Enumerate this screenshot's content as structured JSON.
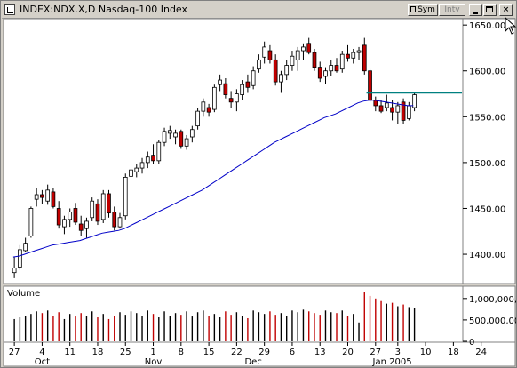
{
  "window": {
    "title": "INDEX:NDX.X,D Nasdaq-100 Index",
    "sym_label": "Sym",
    "intv_label": "Intv",
    "min_label": "",
    "max_label": "",
    "close_label": "×"
  },
  "chart_data": [
    {
      "type": "candlestick",
      "title": "",
      "ylim": [
        1370,
        1655
      ],
      "yticks": [
        1400,
        1450,
        1500,
        1550,
        1600,
        "1650.00"
      ],
      "ytick_labels": [
        "1400.00",
        "1450.00",
        "1500.00",
        "1550.00",
        "1600.00",
        "1650.00"
      ],
      "x_day_ticks": [
        "27",
        "4",
        "11",
        "18",
        "25",
        "1",
        "8",
        "15",
        "22",
        "29",
        "6",
        "13",
        "20",
        "27",
        "3",
        "10",
        "18",
        "24"
      ],
      "x_month_labels": [
        "Oct",
        "Nov",
        "Dec",
        "Jan 2005"
      ],
      "candles": [
        {
          "o": 1380,
          "h": 1397,
          "l": 1374,
          "c": 1385,
          "up": true
        },
        {
          "o": 1386,
          "h": 1410,
          "l": 1383,
          "c": 1405,
          "up": true
        },
        {
          "o": 1404,
          "h": 1418,
          "l": 1402,
          "c": 1412,
          "up": true
        },
        {
          "o": 1420,
          "h": 1452,
          "l": 1418,
          "c": 1450,
          "up": true
        },
        {
          "o": 1460,
          "h": 1472,
          "l": 1452,
          "c": 1465,
          "up": true
        },
        {
          "o": 1465,
          "h": 1470,
          "l": 1455,
          "c": 1462,
          "up": false
        },
        {
          "o": 1458,
          "h": 1476,
          "l": 1454,
          "c": 1470,
          "up": true
        },
        {
          "o": 1468,
          "h": 1472,
          "l": 1450,
          "c": 1452,
          "up": false
        },
        {
          "o": 1450,
          "h": 1458,
          "l": 1428,
          "c": 1432,
          "up": false
        },
        {
          "o": 1430,
          "h": 1442,
          "l": 1422,
          "c": 1438,
          "up": true
        },
        {
          "o": 1438,
          "h": 1450,
          "l": 1430,
          "c": 1446,
          "up": true
        },
        {
          "o": 1450,
          "h": 1456,
          "l": 1432,
          "c": 1435,
          "up": false
        },
        {
          "o": 1433,
          "h": 1442,
          "l": 1420,
          "c": 1426,
          "up": false
        },
        {
          "o": 1428,
          "h": 1440,
          "l": 1418,
          "c": 1436,
          "up": true
        },
        {
          "o": 1440,
          "h": 1462,
          "l": 1436,
          "c": 1458,
          "up": true
        },
        {
          "o": 1455,
          "h": 1460,
          "l": 1432,
          "c": 1436,
          "up": false
        },
        {
          "o": 1438,
          "h": 1470,
          "l": 1434,
          "c": 1466,
          "up": true
        },
        {
          "o": 1466,
          "h": 1470,
          "l": 1440,
          "c": 1445,
          "up": false
        },
        {
          "o": 1446,
          "h": 1452,
          "l": 1426,
          "c": 1430,
          "up": false
        },
        {
          "o": 1430,
          "h": 1445,
          "l": 1428,
          "c": 1440,
          "up": true
        },
        {
          "o": 1442,
          "h": 1488,
          "l": 1438,
          "c": 1484,
          "up": true
        },
        {
          "o": 1485,
          "h": 1496,
          "l": 1480,
          "c": 1492,
          "up": true
        },
        {
          "o": 1490,
          "h": 1498,
          "l": 1484,
          "c": 1494,
          "up": true
        },
        {
          "o": 1494,
          "h": 1505,
          "l": 1488,
          "c": 1500,
          "up": true
        },
        {
          "o": 1500,
          "h": 1512,
          "l": 1494,
          "c": 1506,
          "up": true
        },
        {
          "o": 1508,
          "h": 1520,
          "l": 1498,
          "c": 1502,
          "up": false
        },
        {
          "o": 1502,
          "h": 1525,
          "l": 1498,
          "c": 1522,
          "up": true
        },
        {
          "o": 1522,
          "h": 1538,
          "l": 1518,
          "c": 1534,
          "up": true
        },
        {
          "o": 1532,
          "h": 1540,
          "l": 1526,
          "c": 1535,
          "up": true
        },
        {
          "o": 1528,
          "h": 1536,
          "l": 1520,
          "c": 1532,
          "up": true
        },
        {
          "o": 1534,
          "h": 1536,
          "l": 1515,
          "c": 1518,
          "up": false
        },
        {
          "o": 1518,
          "h": 1530,
          "l": 1514,
          "c": 1526,
          "up": true
        },
        {
          "o": 1528,
          "h": 1540,
          "l": 1522,
          "c": 1536,
          "up": true
        },
        {
          "o": 1540,
          "h": 1560,
          "l": 1536,
          "c": 1556,
          "up": true
        },
        {
          "o": 1556,
          "h": 1570,
          "l": 1550,
          "c": 1566,
          "up": true
        },
        {
          "o": 1560,
          "h": 1564,
          "l": 1550,
          "c": 1555,
          "up": false
        },
        {
          "o": 1558,
          "h": 1585,
          "l": 1555,
          "c": 1582,
          "up": true
        },
        {
          "o": 1585,
          "h": 1596,
          "l": 1578,
          "c": 1590,
          "up": true
        },
        {
          "o": 1586,
          "h": 1592,
          "l": 1570,
          "c": 1574,
          "up": false
        },
        {
          "o": 1570,
          "h": 1578,
          "l": 1560,
          "c": 1566,
          "up": false
        },
        {
          "o": 1566,
          "h": 1580,
          "l": 1556,
          "c": 1575,
          "up": true
        },
        {
          "o": 1574,
          "h": 1590,
          "l": 1568,
          "c": 1585,
          "up": true
        },
        {
          "o": 1588,
          "h": 1596,
          "l": 1576,
          "c": 1582,
          "up": false
        },
        {
          "o": 1584,
          "h": 1605,
          "l": 1580,
          "c": 1600,
          "up": true
        },
        {
          "o": 1602,
          "h": 1618,
          "l": 1598,
          "c": 1612,
          "up": true
        },
        {
          "o": 1615,
          "h": 1632,
          "l": 1608,
          "c": 1626,
          "up": true
        },
        {
          "o": 1622,
          "h": 1628,
          "l": 1608,
          "c": 1612,
          "up": false
        },
        {
          "o": 1612,
          "h": 1618,
          "l": 1584,
          "c": 1588,
          "up": false
        },
        {
          "o": 1588,
          "h": 1600,
          "l": 1576,
          "c": 1596,
          "up": true
        },
        {
          "o": 1596,
          "h": 1612,
          "l": 1590,
          "c": 1606,
          "up": true
        },
        {
          "o": 1606,
          "h": 1622,
          "l": 1600,
          "c": 1616,
          "up": true
        },
        {
          "o": 1612,
          "h": 1626,
          "l": 1600,
          "c": 1622,
          "up": true
        },
        {
          "o": 1622,
          "h": 1630,
          "l": 1612,
          "c": 1626,
          "up": true
        },
        {
          "o": 1630,
          "h": 1636,
          "l": 1618,
          "c": 1620,
          "up": false
        },
        {
          "o": 1620,
          "h": 1624,
          "l": 1600,
          "c": 1604,
          "up": false
        },
        {
          "o": 1604,
          "h": 1610,
          "l": 1588,
          "c": 1592,
          "up": false
        },
        {
          "o": 1594,
          "h": 1604,
          "l": 1586,
          "c": 1600,
          "up": true
        },
        {
          "o": 1600,
          "h": 1612,
          "l": 1594,
          "c": 1606,
          "up": true
        },
        {
          "o": 1606,
          "h": 1614,
          "l": 1598,
          "c": 1600,
          "up": false
        },
        {
          "o": 1602,
          "h": 1622,
          "l": 1598,
          "c": 1618,
          "up": true
        },
        {
          "o": 1618,
          "h": 1628,
          "l": 1610,
          "c": 1614,
          "up": false
        },
        {
          "o": 1614,
          "h": 1624,
          "l": 1608,
          "c": 1620,
          "up": true
        },
        {
          "o": 1620,
          "h": 1626,
          "l": 1612,
          "c": 1622,
          "up": true
        },
        {
          "o": 1628,
          "h": 1636,
          "l": 1596,
          "c": 1600,
          "up": false
        },
        {
          "o": 1600,
          "h": 1602,
          "l": 1566,
          "c": 1568,
          "up": false
        },
        {
          "o": 1568,
          "h": 1572,
          "l": 1556,
          "c": 1562,
          "up": false
        },
        {
          "o": 1562,
          "h": 1568,
          "l": 1554,
          "c": 1556,
          "up": false
        },
        {
          "o": 1560,
          "h": 1574,
          "l": 1556,
          "c": 1565,
          "up": true
        },
        {
          "o": 1560,
          "h": 1568,
          "l": 1546,
          "c": 1555,
          "up": false
        },
        {
          "o": 1555,
          "h": 1566,
          "l": 1542,
          "c": 1562,
          "up": true
        },
        {
          "o": 1566,
          "h": 1570,
          "l": 1542,
          "c": 1546,
          "up": false
        },
        {
          "o": 1548,
          "h": 1566,
          "l": 1546,
          "c": 1562,
          "up": true
        },
        {
          "o": 1560,
          "h": 1576,
          "l": 1556,
          "c": 1574,
          "up": true
        }
      ],
      "ma": [
        1397,
        1398,
        1400,
        1402,
        1404,
        1406,
        1408,
        1410,
        1411,
        1412,
        1413,
        1414,
        1415,
        1417,
        1419,
        1421,
        1423,
        1424,
        1425,
        1426,
        1428,
        1431,
        1434,
        1437,
        1440,
        1443,
        1446,
        1449,
        1452,
        1455,
        1458,
        1461,
        1464,
        1467,
        1470,
        1474,
        1478,
        1482,
        1486,
        1490,
        1494,
        1498,
        1502,
        1506,
        1510,
        1514,
        1518,
        1522,
        1525,
        1528,
        1531,
        1534,
        1537,
        1540,
        1543,
        1546,
        1549,
        1551,
        1553,
        1556,
        1559,
        1562,
        1565,
        1567,
        1568,
        1568,
        1567,
        1566,
        1565,
        1564,
        1563,
        1562,
        1562
      ],
      "ma_color": "#0000c8",
      "hline": {
        "value": 1576,
        "color": "#008080"
      },
      "up_color": "#ffffff",
      "down_color": "#c00000"
    },
    {
      "type": "bar",
      "title": "Volume",
      "ylim": [
        0,
        1100000
      ],
      "yticks": [
        0,
        500000,
        1000000
      ],
      "ytick_labels": [
        "0",
        "500,000,00",
        "1,000,000,0"
      ],
      "bar_up_color": "#000000",
      "bar_down_color": "#c00000",
      "values": [
        520000,
        560000,
        600000,
        640000,
        700000,
        660000,
        720000,
        600000,
        680000,
        520000,
        640000,
        580000,
        660000,
        600000,
        700000,
        560000,
        640000,
        520000,
        600000,
        680000,
        620000,
        700000,
        660000,
        600000,
        720000,
        640000,
        560000,
        700000,
        600000,
        660000,
        620000,
        700000,
        580000,
        680000,
        720000,
        600000,
        640000,
        560000,
        700000,
        620000,
        680000,
        600000,
        540000,
        720000,
        680000,
        640000,
        700000,
        620000,
        660000,
        600000,
        720000,
        680000,
        740000,
        700000,
        660000,
        620000,
        720000,
        680000,
        660000,
        720000,
        600000,
        640000,
        440000,
        1160000,
        1060000,
        1000000,
        940000,
        880000,
        900000,
        820000,
        860000,
        800000,
        780000
      ]
    }
  ]
}
